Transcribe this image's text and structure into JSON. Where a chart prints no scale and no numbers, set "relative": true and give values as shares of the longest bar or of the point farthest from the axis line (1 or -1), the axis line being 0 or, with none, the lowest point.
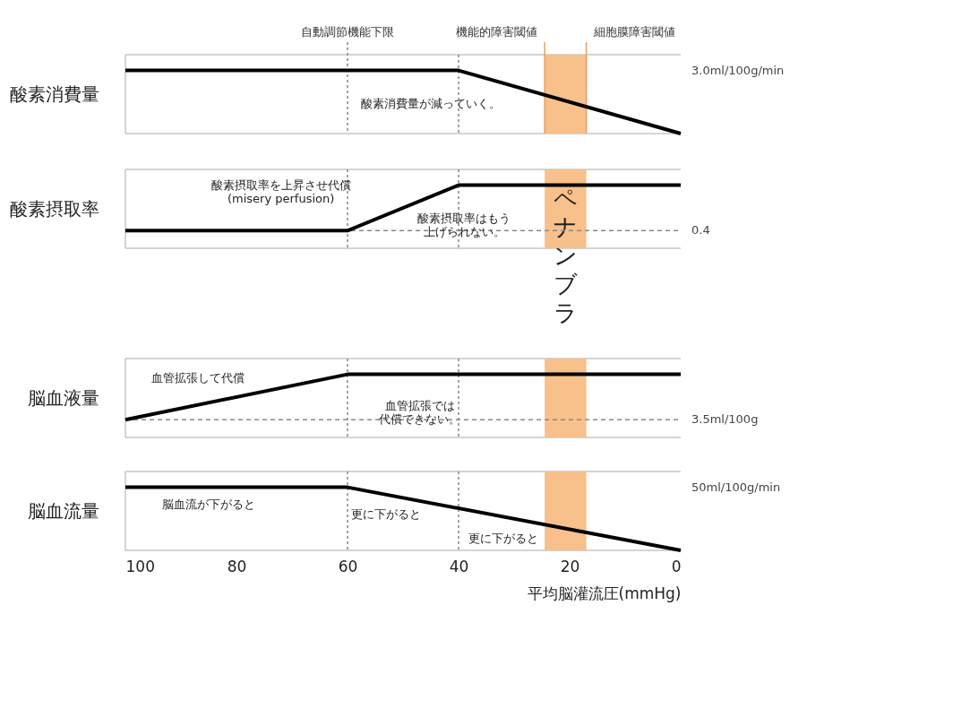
{
  "chart_data": [
    {
      "type": "line",
      "ylabel": "酸素消費量",
      "x": [
        100,
        40,
        0
      ],
      "series": [
        {
          "color": "#000000",
          "values": [
            1,
            1,
            0
          ]
        }
      ],
      "relative": true,
      "xlim": [
        100,
        0
      ],
      "xticks": [
        100,
        80,
        60,
        40,
        20,
        0
      ],
      "tick_labels": false,
      "ref_lines": [
        {
          "axis": "x",
          "value": 60,
          "label": "自動調節機能下限",
          "line_style": "dotted"
        },
        {
          "axis": "x",
          "value": 40,
          "line_style": "dotted"
        },
        {
          "axis": "x",
          "value": 24.5,
          "label": "機能的障害閾値",
          "line_style": "solid",
          "color": "#e8a060"
        },
        {
          "axis": "x",
          "value": 17,
          "label": "細胞膜障害閾値",
          "line_style": "solid",
          "color": "#e8a060"
        }
      ],
      "bands": [
        {
          "axis": "x",
          "from": 24.5,
          "to": 17,
          "color": "#f8c08a"
        }
      ],
      "annotations": [
        "酸素消費量が減っていく。",
        "3.0ml/100g/min"
      ]
    },
    {
      "type": "line",
      "ylabel": "酸素摂取率",
      "x": [
        100,
        60,
        40,
        0
      ],
      "series": [
        {
          "color": "#000000",
          "values": [
            0.28,
            0.28,
            1,
            1
          ]
        }
      ],
      "relative": true,
      "xlim": [
        100,
        0
      ],
      "xticks": [
        100,
        80,
        60,
        40,
        20,
        0
      ],
      "tick_labels": false,
      "ref_lines": [
        {
          "axis": "x",
          "value": 60,
          "line_style": "dotted"
        },
        {
          "axis": "x",
          "value": 40,
          "line_style": "dotted"
        },
        {
          "axis": "y",
          "value": 0.28,
          "line_style": "dashed"
        }
      ],
      "bands": [
        {
          "axis": "x",
          "from": 24.5,
          "to": 17,
          "label": "ペナンブラ",
          "color": "#f8c08a"
        }
      ],
      "annotations": [
        "酸素摂取率を上昇させ代償 (misery perfusion)",
        "酸素摂取率はもう上げられない。",
        "0.4"
      ]
    },
    {
      "type": "line",
      "ylabel": "脳血液量",
      "x": [
        100,
        60,
        0
      ],
      "series": [
        {
          "color": "#000000",
          "values": [
            0.28,
            1,
            1
          ]
        }
      ],
      "relative": true,
      "xlim": [
        100,
        0
      ],
      "xticks": [
        100,
        80,
        60,
        40,
        20,
        0
      ],
      "tick_labels": false,
      "ref_lines": [
        {
          "axis": "x",
          "value": 60,
          "line_style": "dotted"
        },
        {
          "axis": "x",
          "value": 40,
          "line_style": "dotted"
        },
        {
          "axis": "y",
          "value": 0.28,
          "line_style": "dashed"
        }
      ],
      "bands": [
        {
          "axis": "x",
          "from": 24.5,
          "to": 17,
          "color": "#f8c08a"
        }
      ],
      "annotations": [
        "血管拡張して代償",
        "血管拡張では代償できない。",
        "3.5ml/100g"
      ]
    },
    {
      "type": "line",
      "ylabel": "脳血流量",
      "xlabel": "平均脳灌流圧(mmHg)",
      "x": [
        100,
        60,
        0
      ],
      "series": [
        {
          "color": "#000000",
          "values": [
            1,
            1,
            0
          ]
        }
      ],
      "relative": true,
      "xlim": [
        100,
        0
      ],
      "xticks": [
        100,
        80,
        60,
        40,
        20,
        0
      ],
      "tick_labels": "x",
      "ref_lines": [
        {
          "axis": "x",
          "value": 60,
          "line_style": "dotted"
        },
        {
          "axis": "x",
          "value": 40,
          "line_style": "dotted"
        }
      ],
      "bands": [
        {
          "axis": "x",
          "from": 24.5,
          "to": 17,
          "color": "#f8c08a"
        }
      ],
      "annotations": [
        "脳血流が下がると",
        "更に下がると",
        "更に下がると",
        "50ml/100g/min"
      ]
    }
  ]
}
